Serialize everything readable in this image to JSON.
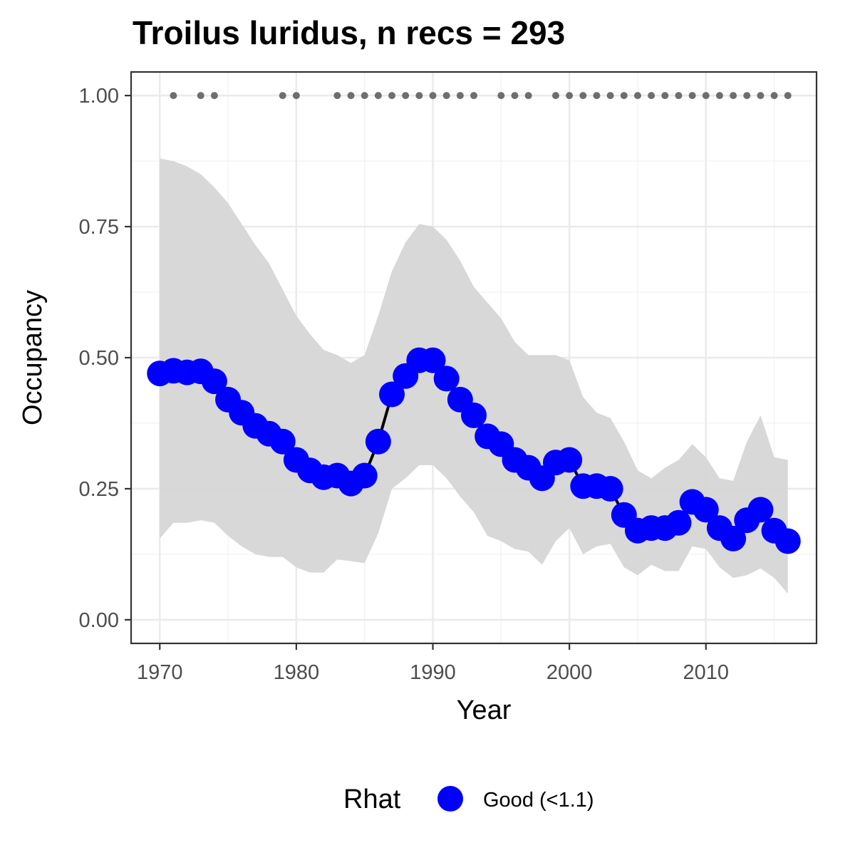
{
  "chart_data": {
    "type": "line",
    "title": "Troilus luridus, n recs = 293",
    "xlabel": "Year",
    "ylabel": "Occupancy",
    "xlim": [
      1967.9,
      2018.1
    ],
    "ylim": [
      -0.045,
      1.045
    ],
    "x_ticks": [
      1970,
      1980,
      1990,
      2000,
      2010
    ],
    "x_tick_labels": [
      "1970",
      "1980",
      "1990",
      "2000",
      "2010"
    ],
    "y_ticks": [
      0,
      0.25,
      0.5,
      0.75,
      1
    ],
    "y_tick_labels": [
      "0.00",
      "0.25",
      "0.50",
      "0.75",
      "1.00"
    ],
    "grid": true,
    "legend": {
      "position": "bottom",
      "title": "Rhat",
      "entries": [
        {
          "label": "Good (<1.1)",
          "color": "#0000ff"
        }
      ]
    },
    "colors": {
      "points": "#0000ff",
      "line": "#000000",
      "ribbon": "#d6d6d6",
      "record_dots": "#6e6e6e",
      "grid_major": "#ebebeb",
      "grid_minor": "#f3f3f3",
      "panel_border": "#333333"
    },
    "series": [
      {
        "x": [
          1970,
          1971,
          1972,
          1973,
          1974,
          1975,
          1976,
          1977,
          1978,
          1979,
          1980,
          1981,
          1982,
          1983,
          1984,
          1985,
          1986,
          1987,
          1988,
          1989,
          1990,
          1991,
          1992,
          1993,
          1994,
          1995,
          1996,
          1997,
          1998,
          1999,
          2000,
          2001,
          2002,
          2003,
          2004,
          2005,
          2006,
          2007,
          2008,
          2009,
          2010,
          2011,
          2012,
          2013,
          2014,
          2015,
          2016
        ],
        "y": [
          0.47,
          0.475,
          0.472,
          0.474,
          0.455,
          0.42,
          0.395,
          0.37,
          0.355,
          0.34,
          0.305,
          0.285,
          0.272,
          0.275,
          0.26,
          0.275,
          0.34,
          0.43,
          0.465,
          0.495,
          0.495,
          0.46,
          0.42,
          0.39,
          0.35,
          0.335,
          0.305,
          0.29,
          0.27,
          0.3,
          0.305,
          0.255,
          0.255,
          0.25,
          0.2,
          0.17,
          0.175,
          0.175,
          0.185,
          0.225,
          0.21,
          0.175,
          0.155,
          0.19,
          0.21,
          0.17,
          0.15
        ],
        "lower": [
          0.155,
          0.185,
          0.185,
          0.19,
          0.185,
          0.16,
          0.14,
          0.125,
          0.12,
          0.12,
          0.1,
          0.09,
          0.09,
          0.115,
          0.112,
          0.108,
          0.165,
          0.25,
          0.27,
          0.295,
          0.295,
          0.27,
          0.235,
          0.205,
          0.16,
          0.15,
          0.135,
          0.13,
          0.105,
          0.15,
          0.175,
          0.125,
          0.14,
          0.145,
          0.1,
          0.085,
          0.105,
          0.093,
          0.093,
          0.14,
          0.135,
          0.1,
          0.08,
          0.085,
          0.098,
          0.08,
          0.05
        ],
        "upper": [
          0.88,
          0.875,
          0.865,
          0.85,
          0.825,
          0.795,
          0.755,
          0.715,
          0.68,
          0.63,
          0.58,
          0.545,
          0.515,
          0.505,
          0.49,
          0.505,
          0.58,
          0.665,
          0.72,
          0.755,
          0.75,
          0.725,
          0.685,
          0.635,
          0.605,
          0.575,
          0.53,
          0.505,
          0.505,
          0.505,
          0.495,
          0.425,
          0.395,
          0.385,
          0.34,
          0.285,
          0.27,
          0.29,
          0.305,
          0.335,
          0.31,
          0.27,
          0.265,
          0.34,
          0.39,
          0.31,
          0.305
        ]
      }
    ],
    "record_years": {
      "y": 1,
      "x": [
        1971,
        1973,
        1974,
        1979,
        1980,
        1983,
        1984,
        1985,
        1986,
        1987,
        1988,
        1989,
        1990,
        1991,
        1992,
        1993,
        1995,
        1996,
        1997,
        1999,
        2000,
        2001,
        2002,
        2003,
        2004,
        2005,
        2006,
        2007,
        2008,
        2009,
        2010,
        2011,
        2012,
        2013,
        2014,
        2015,
        2016
      ]
    }
  }
}
